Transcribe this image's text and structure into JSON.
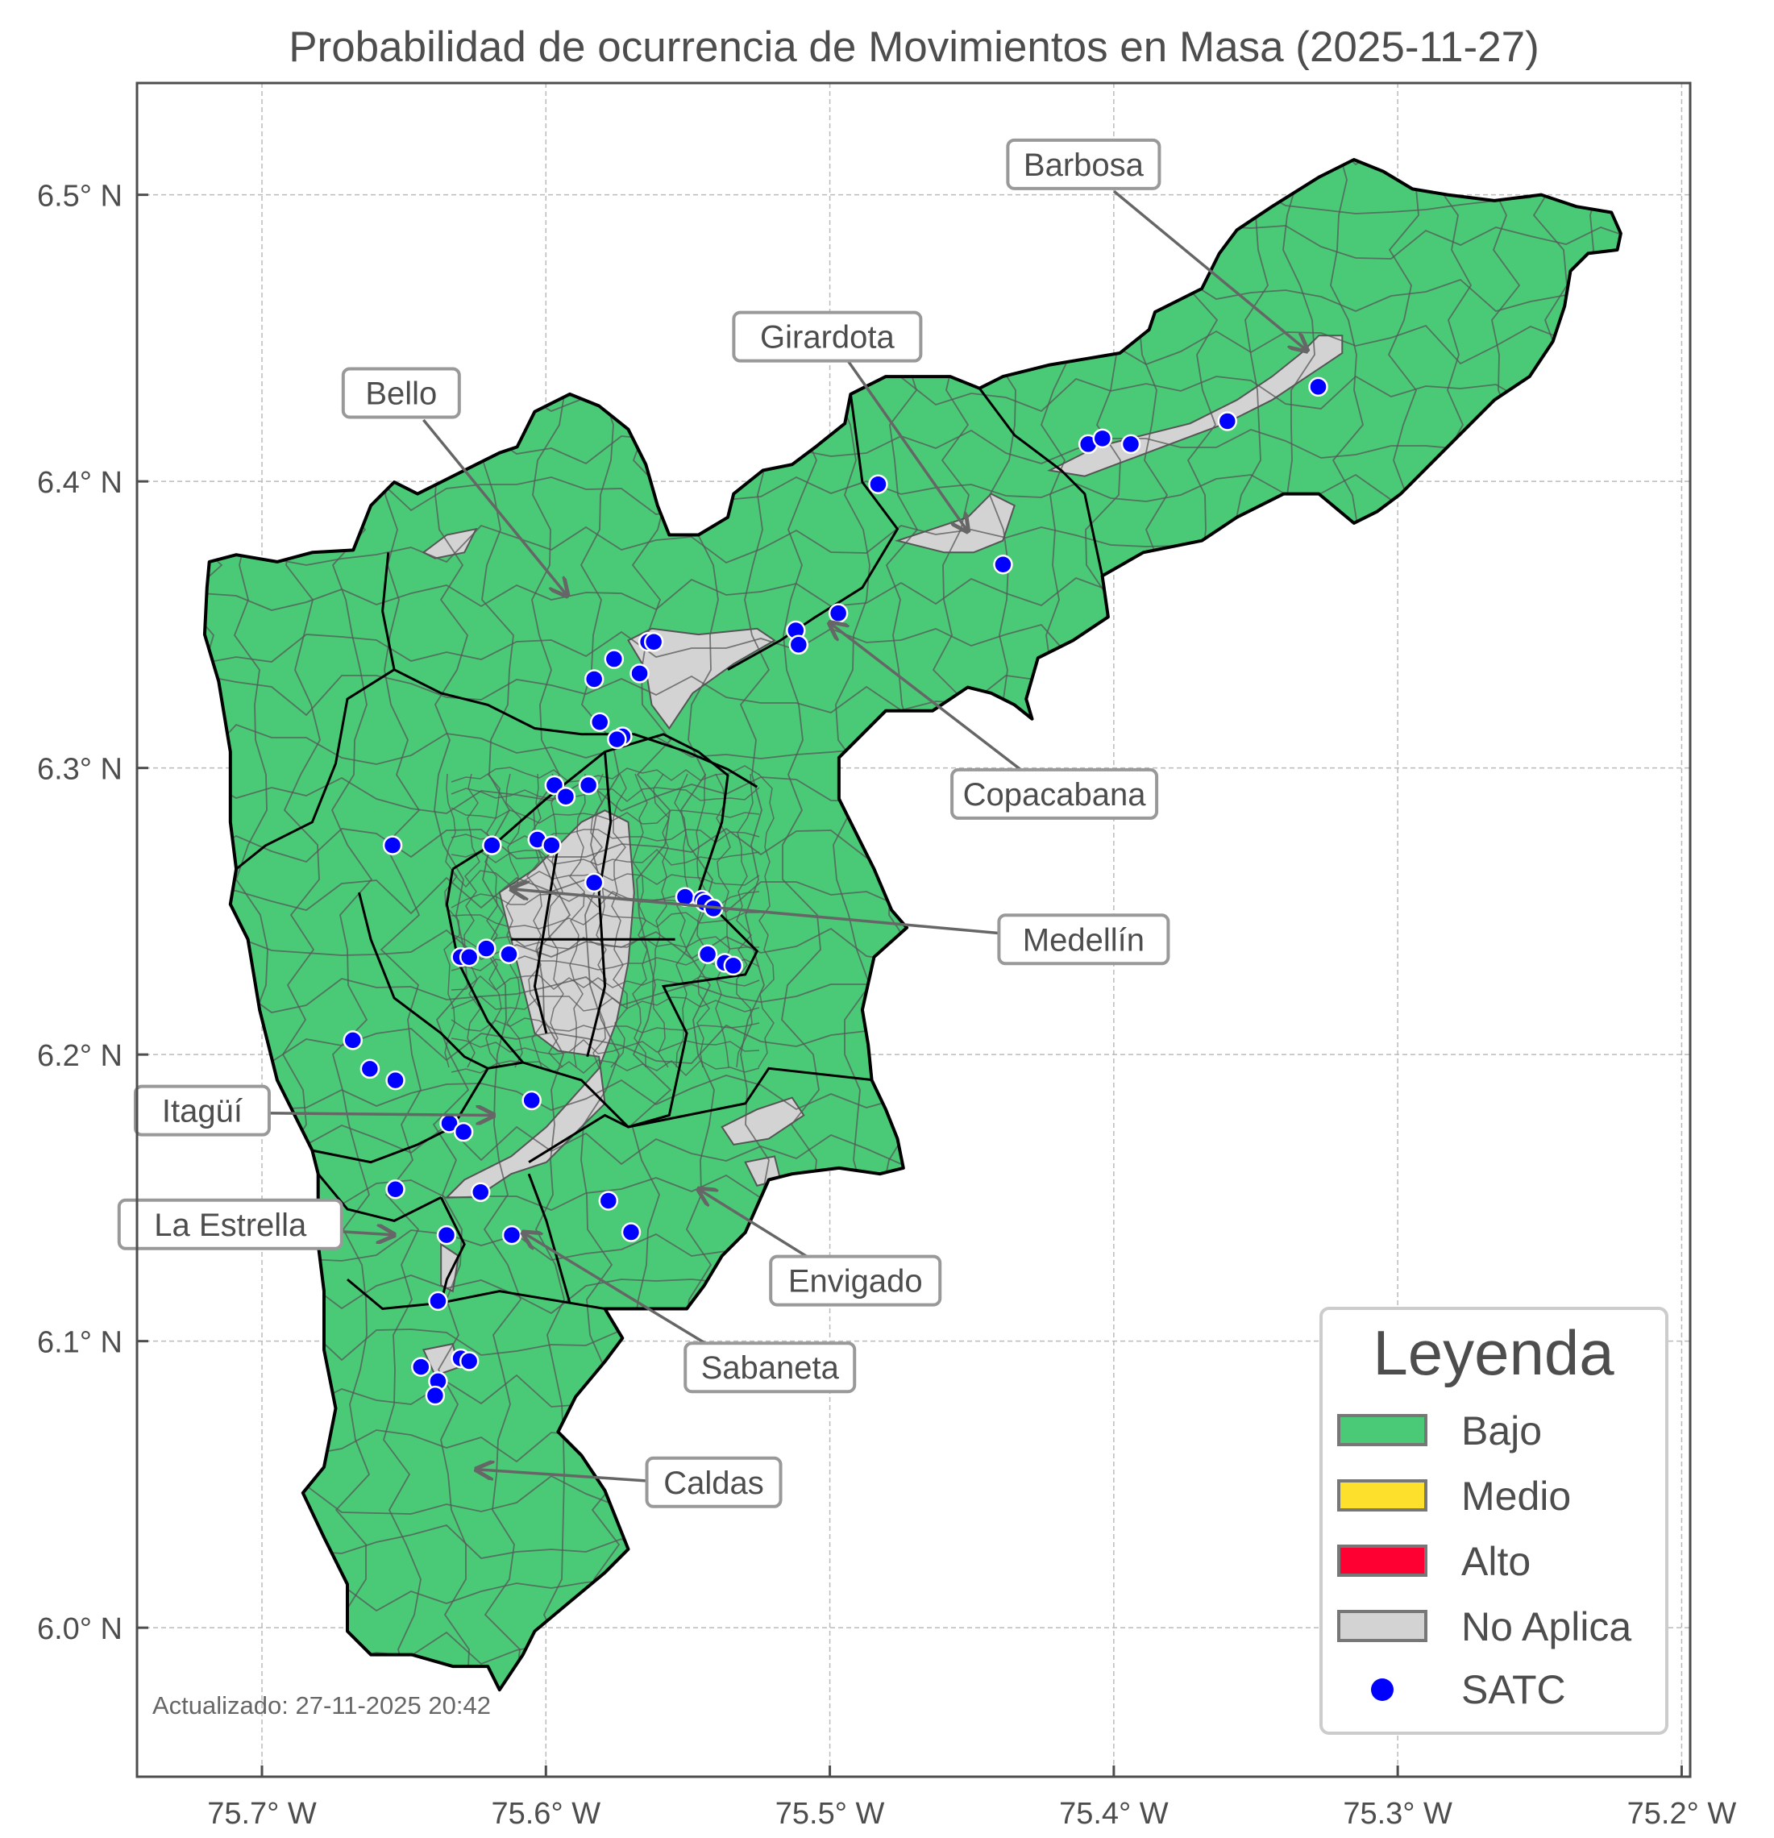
{
  "title": "Probabilidad de ocurrencia de Movimientos en Masa (2025-11-27)",
  "footer": "Actualizado: 27-11-2025 20:42",
  "chart_data": {
    "type": "map",
    "x_ticks": [
      {
        "lon": -75.7,
        "label": "75.7° W"
      },
      {
        "lon": -75.6,
        "label": "75.6° W"
      },
      {
        "lon": -75.5,
        "label": "75.5° W"
      },
      {
        "lon": -75.4,
        "label": "75.4° W"
      },
      {
        "lon": -75.3,
        "label": "75.3° W"
      },
      {
        "lon": -75.2,
        "label": "75.2° W"
      }
    ],
    "y_ticks": [
      {
        "lat": 6.0,
        "label": "6.0° N"
      },
      {
        "lat": 6.1,
        "label": "6.1° N"
      },
      {
        "lat": 6.2,
        "label": "6.2° N"
      },
      {
        "lat": 6.3,
        "label": "6.3° N"
      },
      {
        "lat": 6.4,
        "label": "6.4° N"
      },
      {
        "lat": 6.5,
        "label": "6.5° N"
      }
    ],
    "lon_range": [
      -75.744,
      -75.197
    ],
    "lat_range": [
      5.948,
      6.539
    ],
    "grid": true,
    "legend": {
      "title": "Leyenda",
      "placement": "bottom-right",
      "items": [
        {
          "label": "Bajo",
          "color": "#4ac977",
          "kind": "patch"
        },
        {
          "label": "Medio",
          "color": "#fde02b",
          "kind": "patch"
        },
        {
          "label": "Alto",
          "color": "#ff0033",
          "kind": "patch"
        },
        {
          "label": "No Aplica",
          "color": "#d3d3d3",
          "kind": "patch"
        },
        {
          "label": "SATC",
          "color": "#0000ff",
          "kind": "point"
        }
      ]
    },
    "municipality_probability": {
      "Barbosa": "Bajo",
      "Girardota": "Bajo",
      "Copacabana": "Bajo",
      "Bello": "Bajo",
      "Medellín": "Bajo",
      "Itagüí": "Bajo",
      "Envigado": "Bajo",
      "Sabaneta": "Bajo",
      "La Estrella": "Bajo",
      "Caldas": "Bajo"
    },
    "labels": [
      "Barbosa",
      "Girardota",
      "Bello",
      "Copacabana",
      "Medellín",
      "Itagüí",
      "La Estrella",
      "Envigado",
      "Sabaneta",
      "Caldas"
    ],
    "satc_points": [
      [
        -75.483,
        6.399
      ],
      [
        -75.409,
        6.413
      ],
      [
        -75.404,
        6.415
      ],
      [
        -75.394,
        6.413
      ],
      [
        -75.36,
        6.421
      ],
      [
        -75.328,
        6.433
      ],
      [
        -75.439,
        6.371
      ],
      [
        -75.497,
        6.354
      ],
      [
        -75.512,
        6.348
      ],
      [
        -75.511,
        6.343
      ],
      [
        -75.564,
        6.344
      ],
      [
        -75.562,
        6.344
      ],
      [
        -75.576,
        6.338
      ],
      [
        -75.583,
        6.331
      ],
      [
        -75.567,
        6.333
      ],
      [
        -75.581,
        6.316
      ],
      [
        -75.573,
        6.311
      ],
      [
        -75.575,
        6.31
      ],
      [
        -75.597,
        6.294
      ],
      [
        -75.585,
        6.294
      ],
      [
        -75.593,
        6.29
      ],
      [
        -75.654,
        6.273
      ],
      [
        -75.619,
        6.273
      ],
      [
        -75.603,
        6.275
      ],
      [
        -75.598,
        6.273
      ],
      [
        -75.583,
        6.26
      ],
      [
        -75.551,
        6.255
      ],
      [
        -75.545,
        6.254
      ],
      [
        -75.544,
        6.253
      ],
      [
        -75.541,
        6.251
      ],
      [
        -75.621,
        6.237
      ],
      [
        -75.63,
        6.234
      ],
      [
        -75.627,
        6.234
      ],
      [
        -75.613,
        6.235
      ],
      [
        -75.543,
        6.235
      ],
      [
        -75.537,
        6.232
      ],
      [
        -75.534,
        6.231
      ],
      [
        -75.668,
        6.205
      ],
      [
        -75.662,
        6.195
      ],
      [
        -75.653,
        6.191
      ],
      [
        -75.605,
        6.184
      ],
      [
        -75.634,
        6.176
      ],
      [
        -75.629,
        6.173
      ],
      [
        -75.653,
        6.153
      ],
      [
        -75.623,
        6.152
      ],
      [
        -75.578,
        6.149
      ],
      [
        -75.57,
        6.138
      ],
      [
        -75.635,
        6.137
      ],
      [
        -75.612,
        6.137
      ],
      [
        -75.638,
        6.114
      ],
      [
        -75.644,
        6.091
      ],
      [
        -75.63,
        6.094
      ],
      [
        -75.627,
        6.093
      ],
      [
        -75.638,
        6.086
      ],
      [
        -75.639,
        6.081
      ]
    ]
  }
}
